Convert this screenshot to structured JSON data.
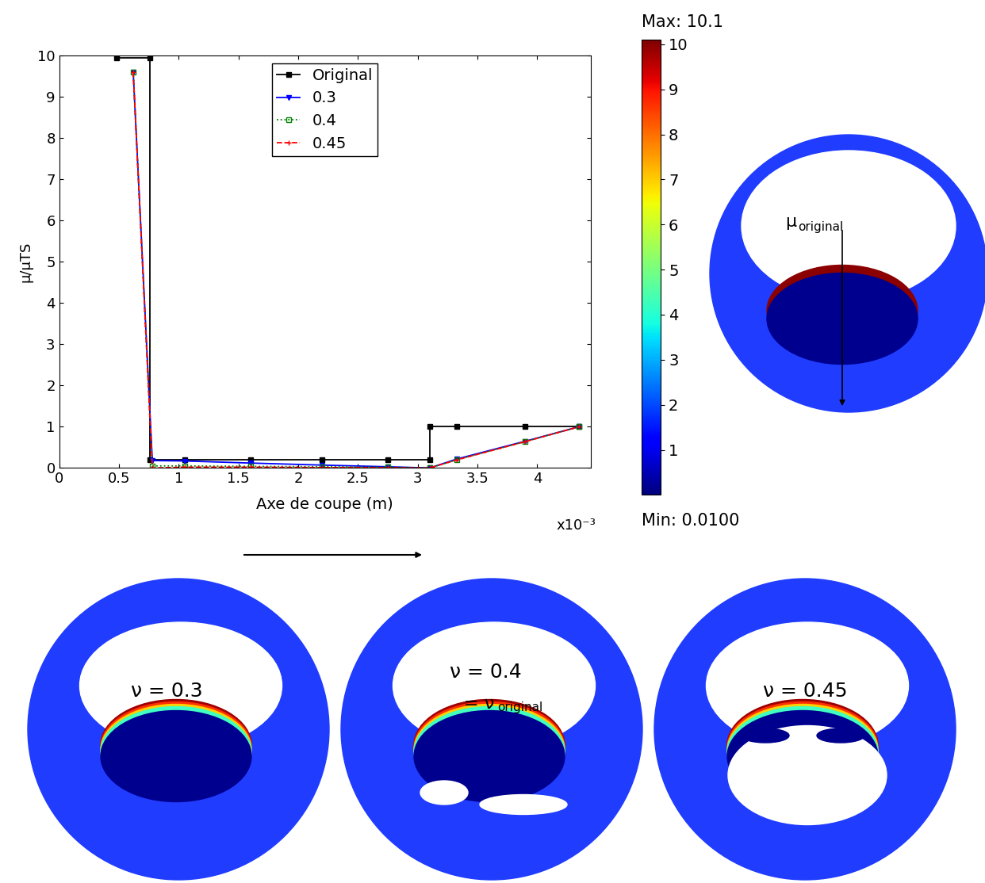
{
  "chart_data": {
    "type": "line",
    "x_label": "Axe de coupe (m)",
    "y_label": "μ/μTS",
    "x_multiplier": "x10⁻³",
    "xlim": [
      0,
      4.45
    ],
    "ylim": [
      0,
      10
    ],
    "xticks": [
      0,
      0.5,
      1,
      1.5,
      2,
      2.5,
      3,
      3.5,
      4
    ],
    "yticks": [
      0,
      1,
      2,
      3,
      4,
      5,
      6,
      7,
      8,
      9,
      10
    ],
    "grid": false,
    "legend": "upper center",
    "series": [
      {
        "name": "Original",
        "color": "#000000",
        "marker": "square",
        "line_style": "solid",
        "x": [
          0.48,
          0.76,
          0.76,
          1.05,
          1.6,
          2.2,
          2.75,
          3.1,
          3.1,
          3.33,
          3.9,
          4.35
        ],
        "values": [
          9.95,
          9.95,
          0.2,
          0.2,
          0.2,
          0.2,
          0.2,
          0.2,
          1,
          1,
          1,
          1
        ]
      },
      {
        "name": "0.3",
        "color": "#0000ff",
        "marker": "triangle_down",
        "line_style": "solid",
        "x": [
          0.62,
          0.78,
          1.05,
          1.6,
          2.2,
          2.75,
          3.1,
          3.33,
          3.9,
          4.35
        ],
        "values": [
          9.6,
          0.18,
          0.17,
          0.12,
          0.07,
          0.03,
          0,
          0.22,
          0.65,
          1.0
        ]
      },
      {
        "name": "0.4",
        "color": "#008000",
        "marker": "square_open",
        "line_style": "dotted",
        "x": [
          0.62,
          0.78,
          1.05,
          1.6,
          2.2,
          2.75,
          3.1,
          3.33,
          3.9,
          4.35
        ],
        "values": [
          9.6,
          0.05,
          0.05,
          0.04,
          0.03,
          0.02,
          0,
          0.2,
          0.64,
          1.0
        ]
      },
      {
        "name": "0.45",
        "color": "#ff0000",
        "marker": "plus",
        "line_style": "dashed",
        "x": [
          0.62,
          0.78,
          1.05,
          1.6,
          2.2,
          2.75,
          3.1,
          3.33,
          3.9,
          4.35
        ],
        "values": [
          9.6,
          0.0,
          0.02,
          0.02,
          0.01,
          0.01,
          0,
          0.2,
          0.64,
          1.0
        ]
      }
    ],
    "colorbar": {
      "range": [
        0.01,
        10.1
      ],
      "ticks": [
        1,
        2,
        3,
        4,
        5,
        6,
        7,
        8,
        9,
        10
      ],
      "max_label": "Max: 10.1",
      "min_label": "Min: 0.0100"
    },
    "ring_maps": [
      {
        "label": "μ",
        "subscript": "original"
      },
      {
        "label": "ν = 0.3"
      },
      {
        "label": "ν = 0.4",
        "label2": "= ν",
        "subscript": "original"
      },
      {
        "label": "ν = 0.45"
      }
    ]
  }
}
